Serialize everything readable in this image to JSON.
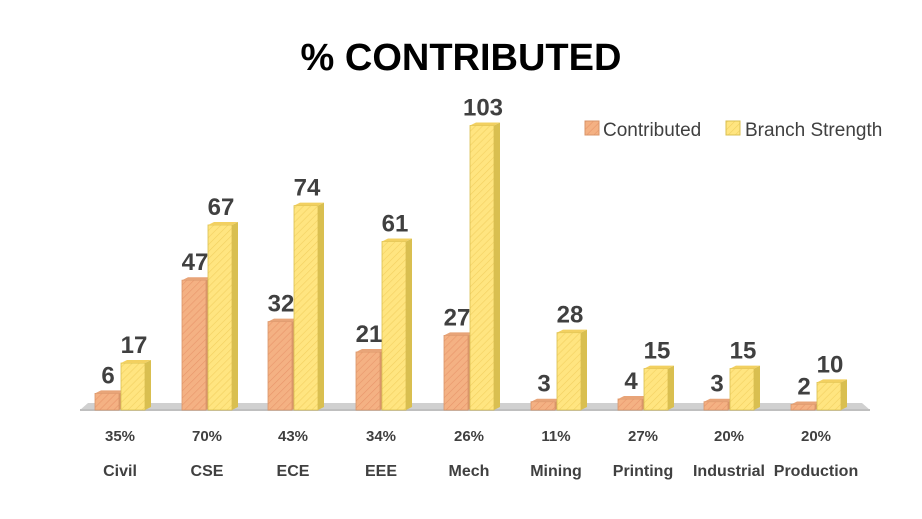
{
  "chart_data": {
    "type": "bar",
    "title": "% CONTRIBUTED",
    "xlabel": "",
    "ylabel": "",
    "categories": [
      "Civil",
      "CSE",
      "ECE",
      "EEE",
      "Mech",
      "Mining",
      "Printing",
      "Industrial",
      "Production"
    ],
    "percentages": [
      "35%",
      "70%",
      "43%",
      "34%",
      "26%",
      "11%",
      "27%",
      "20%",
      "20%"
    ],
    "series": [
      {
        "name": "Contributed",
        "values": [
          6,
          47,
          32,
          21,
          27,
          3,
          4,
          3,
          2
        ],
        "color": "#F4B183"
      },
      {
        "name": "Branch Strength",
        "values": [
          17,
          67,
          74,
          61,
          103,
          28,
          15,
          15,
          10
        ],
        "color": "#FFE580"
      }
    ],
    "ylim": [
      0,
      105
    ],
    "grid": false,
    "legend_position": "top-right"
  }
}
